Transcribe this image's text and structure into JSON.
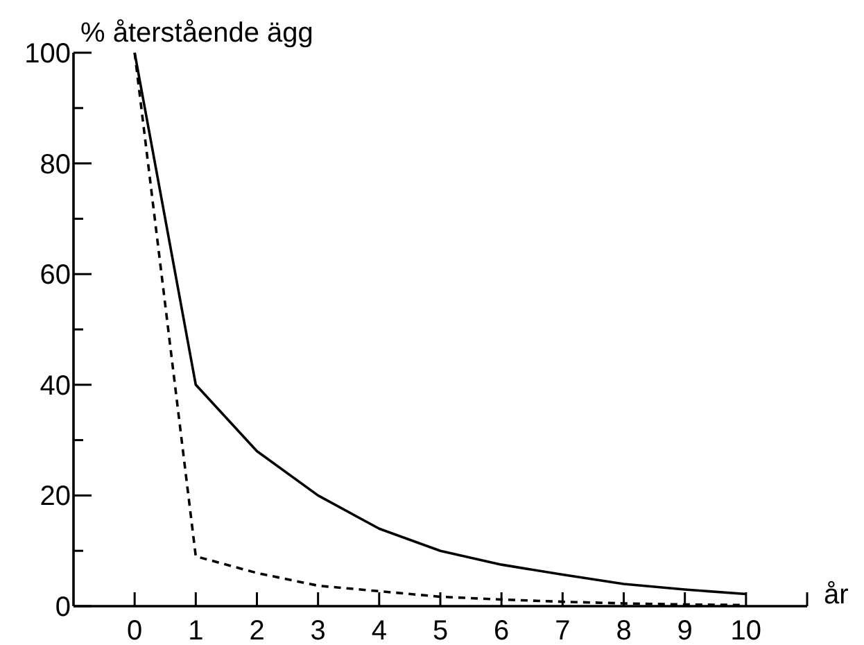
{
  "chart_data": {
    "type": "line",
    "ylabel": "% återstående ägg",
    "xlabel": "år",
    "x": [
      0,
      1,
      2,
      3,
      4,
      5,
      6,
      7,
      8,
      9,
      10
    ],
    "series": [
      {
        "color": "#000000",
        "line_style": "solid",
        "values": [
          100,
          40,
          28,
          20,
          14,
          10,
          7.5,
          5.7,
          4,
          3,
          2.2
        ]
      },
      {
        "color": "#000000",
        "line_style": "dashed",
        "values": [
          100,
          9,
          6,
          3.7,
          2.7,
          1.7,
          1.2,
          0.8,
          0.5,
          0.3,
          0.2
        ]
      }
    ],
    "xlim": [
      -1,
      11
    ],
    "ylim": [
      0,
      100
    ],
    "xticks": [
      0,
      1,
      2,
      3,
      4,
      5,
      6,
      7,
      8,
      9,
      10,
      {
        "value": 11,
        "label": null
      }
    ],
    "yticks": [
      0,
      {
        "value": 10,
        "label": null
      },
      20,
      {
        "value": 30,
        "label": null
      },
      40,
      {
        "value": 50,
        "label": null
      },
      60,
      {
        "value": 70,
        "label": null
      },
      80,
      {
        "value": 90,
        "label": null
      },
      100
    ],
    "marker": "none"
  }
}
